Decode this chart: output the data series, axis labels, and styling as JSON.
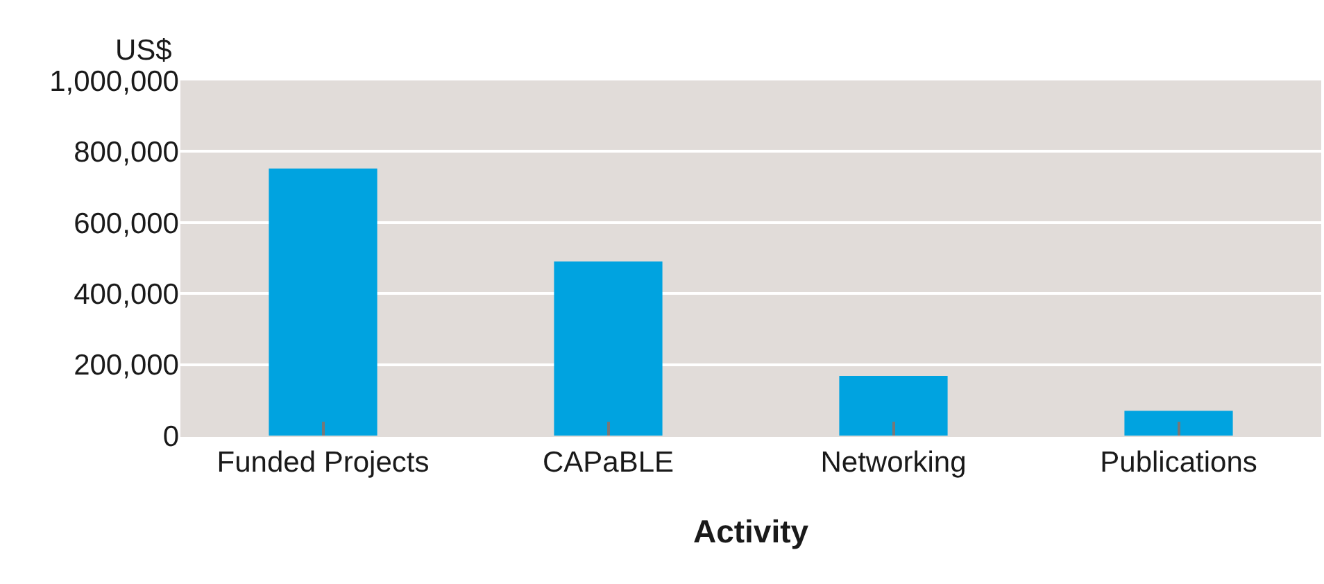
{
  "chart_data": {
    "type": "bar",
    "xlabel": "Activity",
    "ylabel": "US$",
    "categories": [
      "Funded Projects",
      "CAPaBLE",
      "Networking",
      "Publications"
    ],
    "values": [
      752000,
      490000,
      168000,
      70000
    ],
    "color": "#00a3e0",
    "ylim": [
      0,
      1000000
    ],
    "yticks": [
      {
        "value": 0,
        "label": "0"
      },
      {
        "value": 200000,
        "label": "200,000"
      },
      {
        "value": 400000,
        "label": "400,000"
      },
      {
        "value": 600000,
        "label": "600,000"
      },
      {
        "value": 800000,
        "label": "800,000"
      },
      {
        "value": 1000000,
        "label": "1,000,000"
      }
    ],
    "grid": "y",
    "legend": false
  }
}
